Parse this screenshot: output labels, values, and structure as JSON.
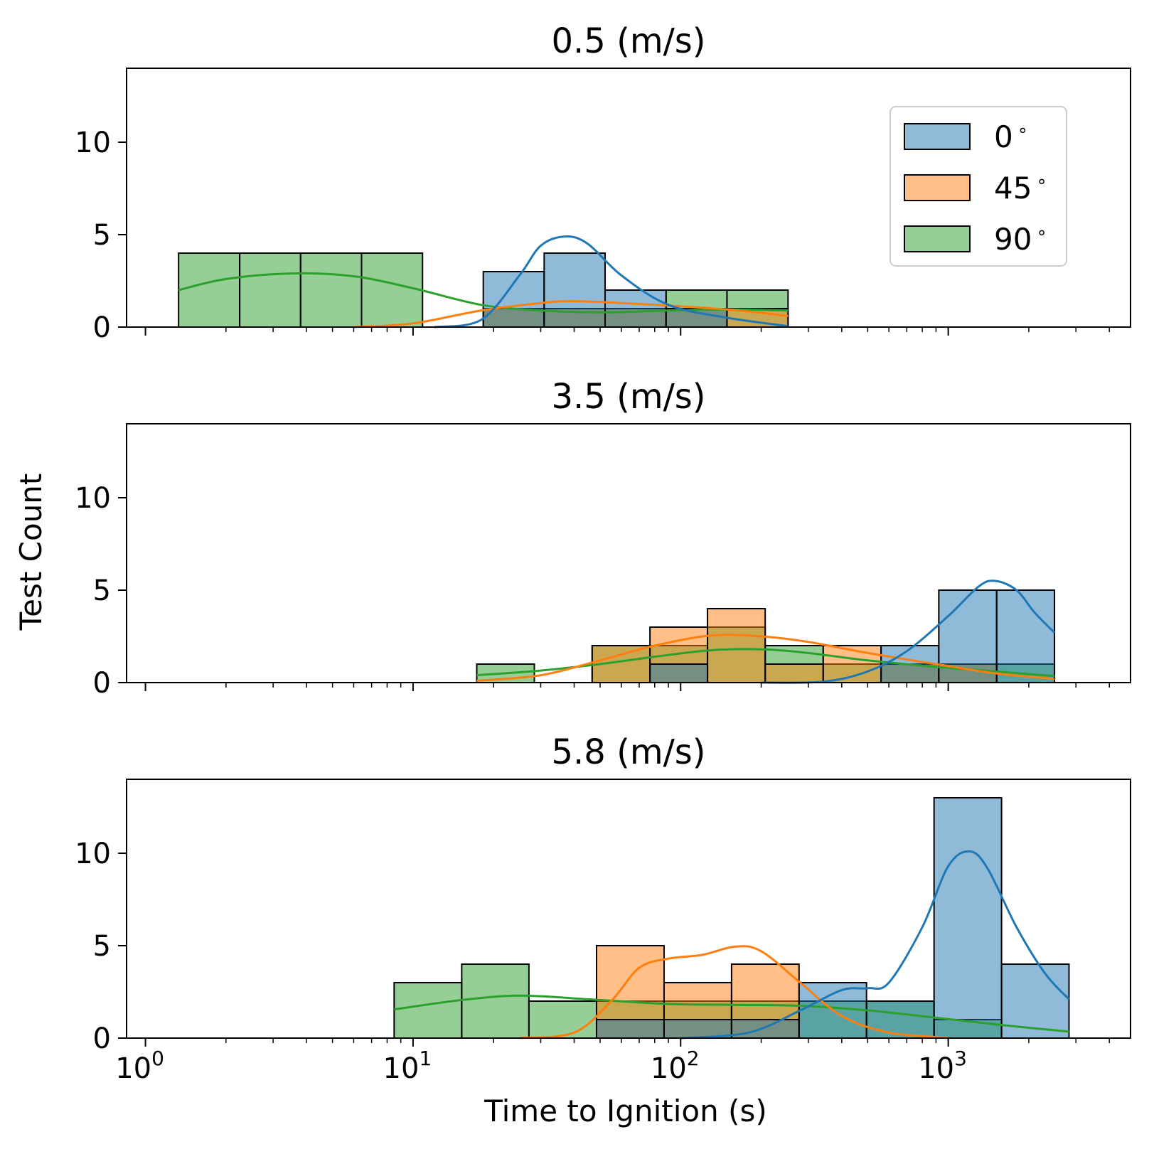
{
  "chart_data": {
    "type": "histogram",
    "xlabel": "Time to Ignition (s)",
    "ylabel": "Test Count",
    "xscale": "log",
    "xlim": [
      0.85,
      4800
    ],
    "ylim": [
      0,
      14
    ],
    "yticks": [
      0,
      5,
      10
    ],
    "xticks": [
      {
        "value": 1,
        "base": "10",
        "exp": "0"
      },
      {
        "value": 10,
        "base": "10",
        "exp": "1"
      },
      {
        "value": 100,
        "base": "10",
        "exp": "2"
      },
      {
        "value": 1000,
        "base": "10",
        "exp": "3"
      }
    ],
    "colors": {
      "0": "#1f77b4",
      "45": "#ff7f0e",
      "90": "#2ca02c",
      "bar_alpha": 0.5,
      "edge": "#000000"
    },
    "legend": {
      "placement": "top-right",
      "entries": [
        {
          "key": "0",
          "label": "0",
          "degree": "∘"
        },
        {
          "key": "45",
          "label": "45",
          "degree": "∘"
        },
        {
          "key": "90",
          "label": "90",
          "degree": "∘"
        }
      ]
    },
    "panels": [
      {
        "title": "0.5 (m/s)",
        "series": [
          {
            "key": "90",
            "bin_edges": [
              1.33,
              2.25,
              3.8,
              6.42,
              10.85,
              18.3,
              30.9,
              52.2,
              88.2,
              149,
              252
            ],
            "counts": [
              4,
              4,
              4,
              4,
              0,
              1,
              1,
              1,
              2,
              2
            ]
          },
          {
            "key": "45",
            "bin_edges": [
              18.3,
              30.9,
              52.2,
              88.2,
              149,
              252
            ],
            "counts": [
              1,
              1,
              1,
              1,
              1
            ]
          },
          {
            "key": "0",
            "bin_edges": [
              18.3,
              30.9,
              52.2,
              88.2,
              149,
              252
            ],
            "counts": [
              3,
              4,
              2,
              1,
              0
            ]
          }
        ],
        "kde": [
          {
            "key": "90",
            "points": [
              [
                1.33,
                2.0
              ],
              [
                2.0,
                2.6
              ],
              [
                3.5,
                2.9
              ],
              [
                6.0,
                2.75
              ],
              [
                10.0,
                2.1
              ],
              [
                18.0,
                1.2
              ],
              [
                30.0,
                0.9
              ],
              [
                52.0,
                0.8
              ],
              [
                90.0,
                0.9
              ],
              [
                150.0,
                0.95
              ],
              [
                252.0,
                0.9
              ]
            ]
          },
          {
            "key": "45",
            "points": [
              [
                6.0,
                0.0
              ],
              [
                10.0,
                0.2
              ],
              [
                18.0,
                0.9
              ],
              [
                30.0,
                1.3
              ],
              [
                40.0,
                1.4
              ],
              [
                70.0,
                1.25
              ],
              [
                150.0,
                0.95
              ],
              [
                252.0,
                0.6
              ]
            ]
          },
          {
            "key": "0",
            "points": [
              [
                12.0,
                0.0
              ],
              [
                18.0,
                0.4
              ],
              [
                25.0,
                2.8
              ],
              [
                30.0,
                4.4
              ],
              [
                37.0,
                4.9
              ],
              [
                45.0,
                4.5
              ],
              [
                60.0,
                2.8
              ],
              [
                90.0,
                1.2
              ],
              [
                150.0,
                0.5
              ],
              [
                252.0,
                0.05
              ]
            ]
          }
        ]
      },
      {
        "title": "3.5 (m/s)",
        "series": [
          {
            "key": "90",
            "bin_edges": [
              17.3,
              28.4,
              46.7,
              76.8,
              126,
              207,
              341,
              561,
              922,
              1517,
              2495
            ],
            "counts": [
              1,
              0,
              2,
              2,
              3,
              2,
              1,
              1,
              1,
              1
            ]
          },
          {
            "key": "45",
            "bin_edges": [
              17.3,
              28.4,
              46.7,
              76.8,
              126,
              207,
              341,
              561,
              922,
              1517,
              2495
            ],
            "counts": [
              0,
              0,
              2,
              3,
              4,
              1,
              2,
              1,
              1,
              0
            ]
          },
          {
            "key": "0",
            "bin_edges": [
              17.3,
              28.4,
              46.7,
              76.8,
              126,
              207,
              341,
              561,
              922,
              1517,
              2495
            ],
            "counts": [
              0,
              0,
              0,
              1,
              0,
              0,
              0,
              2,
              5,
              5
            ]
          }
        ],
        "kde": [
          {
            "key": "90",
            "points": [
              [
                17.3,
                0.4
              ],
              [
                30.0,
                0.65
              ],
              [
                50.0,
                1.0
              ],
              [
                80.0,
                1.4
              ],
              [
                130.0,
                1.75
              ],
              [
                200.0,
                1.8
              ],
              [
                300.0,
                1.6
              ],
              [
                500.0,
                1.2
              ],
              [
                900.0,
                0.85
              ],
              [
                1500.0,
                0.6
              ],
              [
                2495.0,
                0.35
              ]
            ]
          },
          {
            "key": "45",
            "points": [
              [
                17.3,
                0.1
              ],
              [
                30.0,
                0.4
              ],
              [
                50.0,
                1.2
              ],
              [
                80.0,
                2.0
              ],
              [
                130.0,
                2.55
              ],
              [
                200.0,
                2.5
              ],
              [
                300.0,
                2.2
              ],
              [
                500.0,
                1.6
              ],
              [
                900.0,
                1.0
              ],
              [
                1500.0,
                0.5
              ],
              [
                2495.0,
                0.2
              ]
            ]
          },
          {
            "key": "0",
            "points": [
              [
                200.0,
                0.0
              ],
              [
                341.0,
                0.05
              ],
              [
                500.0,
                0.6
              ],
              [
                700.0,
                1.7
              ],
              [
                1000.0,
                3.6
              ],
              [
                1300.0,
                5.2
              ],
              [
                1500.0,
                5.5
              ],
              [
                1800.0,
                5.0
              ],
              [
                2100.0,
                3.8
              ],
              [
                2495.0,
                2.7
              ]
            ]
          }
        ]
      },
      {
        "title": "5.8 (m/s)",
        "series": [
          {
            "key": "90",
            "bin_edges": [
              8.5,
              15.2,
              27.1,
              48.5,
              86.7,
              155,
              277,
              495,
              885,
              1582,
              2827
            ],
            "counts": [
              3,
              4,
              2,
              2,
              2,
              2,
              2,
              2,
              1,
              0
            ]
          },
          {
            "key": "45",
            "bin_edges": [
              8.5,
              15.2,
              27.1,
              48.5,
              86.7,
              155,
              277,
              495,
              885,
              1582,
              2827
            ],
            "counts": [
              0,
              0,
              0,
              5,
              3,
              4,
              0,
              0,
              0,
              0
            ]
          },
          {
            "key": "0",
            "bin_edges": [
              8.5,
              15.2,
              27.1,
              48.5,
              86.7,
              155,
              277,
              495,
              885,
              1582,
              2827
            ],
            "counts": [
              0,
              0,
              0,
              1,
              1,
              1,
              3,
              2,
              13,
              4
            ]
          }
        ],
        "kde": [
          {
            "key": "90",
            "points": [
              [
                8.5,
                1.55
              ],
              [
                15.0,
                2.05
              ],
              [
                25.0,
                2.3
              ],
              [
                45.0,
                2.1
              ],
              [
                90.0,
                1.85
              ],
              [
                160.0,
                1.8
              ],
              [
                280.0,
                1.75
              ],
              [
                500.0,
                1.5
              ],
              [
                900.0,
                1.1
              ],
              [
                1600.0,
                0.7
              ],
              [
                2827.0,
                0.35
              ]
            ]
          },
          {
            "key": "45",
            "points": [
              [
                25.0,
                0.0
              ],
              [
                40.0,
                0.3
              ],
              [
                55.0,
                2.0
              ],
              [
                70.0,
                3.8
              ],
              [
                90.0,
                4.3
              ],
              [
                120.0,
                4.5
              ],
              [
                160.0,
                4.95
              ],
              [
                200.0,
                4.7
              ],
              [
                280.0,
                3.0
              ],
              [
                400.0,
                1.2
              ],
              [
                600.0,
                0.3
              ],
              [
                1000.0,
                0.02
              ]
            ]
          },
          {
            "key": "0",
            "points": [
              [
                100.0,
                0.0
              ],
              [
                180.0,
                0.3
              ],
              [
                280.0,
                1.5
              ],
              [
                400.0,
                2.6
              ],
              [
                500.0,
                2.7
              ],
              [
                600.0,
                3.0
              ],
              [
                800.0,
                6.0
              ],
              [
                1000.0,
                9.3
              ],
              [
                1200.0,
                10.1
              ],
              [
                1400.0,
                9.2
              ],
              [
                1800.0,
                6.0
              ],
              [
                2300.0,
                3.5
              ],
              [
                2827.0,
                2.1
              ]
            ]
          }
        ]
      }
    ]
  }
}
